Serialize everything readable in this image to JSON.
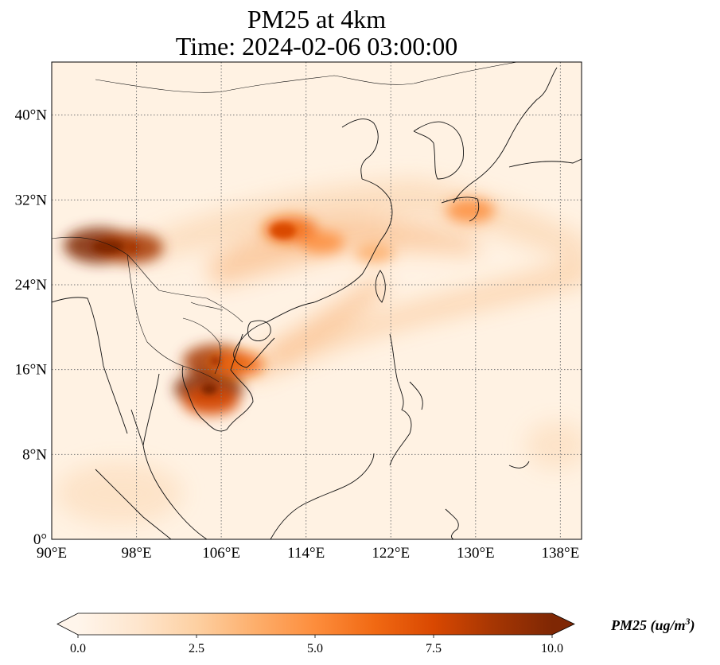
{
  "title": {
    "line1": "PM25 at 4km",
    "line2": "Time: 2024-02-06 03:00:00"
  },
  "map": {
    "lon_range": [
      90,
      140
    ],
    "lat_range": [
      0,
      45
    ],
    "lon_ticks": [
      {
        "value": 90,
        "label": "90°E"
      },
      {
        "value": 98,
        "label": "98°E"
      },
      {
        "value": 106,
        "label": "106°E"
      },
      {
        "value": 114,
        "label": "114°E"
      },
      {
        "value": 122,
        "label": "122°E"
      },
      {
        "value": 130,
        "label": "130°E"
      },
      {
        "value": 138,
        "label": "138°E"
      }
    ],
    "lat_ticks": [
      {
        "value": 0,
        "label": "0°"
      },
      {
        "value": 8,
        "label": "8°N"
      },
      {
        "value": 16,
        "label": "16°N"
      },
      {
        "value": 24,
        "label": "24°N"
      },
      {
        "value": 32,
        "label": "32°N"
      },
      {
        "value": 40,
        "label": "40°N"
      }
    ],
    "gridlines": true,
    "hotspots": [
      {
        "lon": 94.5,
        "lat": 27.7,
        "value": 10.0
      },
      {
        "lon": 97.5,
        "lat": 27.5,
        "value": 8.5
      },
      {
        "lon": 112.5,
        "lat": 29.2,
        "value": 6.5
      },
      {
        "lon": 115.5,
        "lat": 28.0,
        "value": 4.5
      },
      {
        "lon": 129.5,
        "lat": 31.0,
        "value": 5.5
      },
      {
        "lon": 105.5,
        "lat": 16.8,
        "value": 9.0
      },
      {
        "lon": 104.8,
        "lat": 14.2,
        "value": 9.5
      },
      {
        "lon": 105.0,
        "lat": 13.0,
        "value": 7.0
      },
      {
        "lon": 107.5,
        "lat": 16.5,
        "value": 6.5
      },
      {
        "lon": 120.5,
        "lat": 27.0,
        "value": 3.5
      }
    ]
  },
  "colorbar": {
    "label": "PM25 (ug/m",
    "label_sup": "3",
    "label_close": ")",
    "range": [
      0,
      10
    ],
    "ticks": [
      {
        "value": 0,
        "label": "0.0"
      },
      {
        "value": 2.5,
        "label": "2.5"
      },
      {
        "value": 5,
        "label": "5.0"
      },
      {
        "value": 7.5,
        "label": "7.5"
      },
      {
        "value": 10,
        "label": "10.0"
      }
    ],
    "colors": [
      "#fff5eb",
      "#fee6ce",
      "#fdd0a2",
      "#fdae6b",
      "#fd8d3c",
      "#f16913",
      "#d94801",
      "#a63603",
      "#7f2704"
    ]
  }
}
